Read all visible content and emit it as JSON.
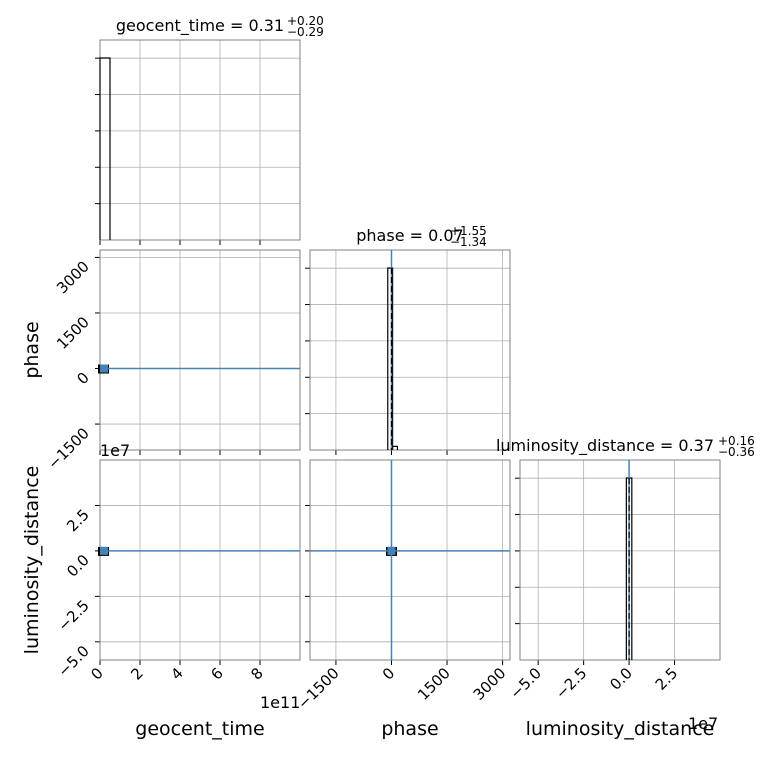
{
  "chart_data": {
    "type": "corner",
    "parameters": [
      "geocent_time",
      "phase",
      "luminosity_distance"
    ],
    "titles": [
      {
        "name": "geocent_time",
        "median": "0.31",
        "plus": "+0.20",
        "minus": "−0.29"
      },
      {
        "name": "phase",
        "median": "0.07",
        "plus": "+1.55",
        "minus": "−1.34"
      },
      {
        "name": "luminosity_distance",
        "median": "0.37",
        "plus": "+0.16",
        "minus": "−0.36"
      }
    ],
    "axis_labels": {
      "x": [
        "geocent_time",
        "phase",
        "luminosity_distance"
      ],
      "y": [
        "phase",
        "luminosity_distance"
      ]
    },
    "axes": {
      "geocent_time": {
        "range": [
          0,
          1000000000000.0
        ],
        "ticks": [
          0,
          200000000000.0,
          400000000000.0,
          600000000000.0,
          800000000000.0
        ],
        "tick_labels": [
          "0",
          "2",
          "4",
          "6",
          "8"
        ],
        "offset": "1e11"
      },
      "phase": {
        "range": [
          -2200,
          3200
        ],
        "ticks": [
          -1500,
          0,
          1500,
          3000
        ],
        "tick_labels": [
          "−1500",
          "0",
          "1500",
          "3000"
        ]
      },
      "luminosity_distance": {
        "range": [
          -60000000.0,
          50000000.0
        ],
        "ticks": [
          -50000000.0,
          -25000000.0,
          0,
          25000000.0
        ],
        "tick_labels": [
          "−5.0",
          "−2.5",
          "0.0",
          "2.5"
        ],
        "offset": "1e7"
      }
    },
    "grid": true,
    "histograms": [
      {
        "param": "geocent_time",
        "bins": [
          {
            "lo": 0,
            "hi": 50000000000.0,
            "count": 1.0
          }
        ]
      },
      {
        "param": "phase",
        "bins": [
          {
            "lo": -100,
            "hi": 30,
            "count": 1.0
          },
          {
            "lo": 30,
            "hi": 160,
            "count": 0.02
          }
        ],
        "truth": 0
      },
      {
        "param": "luminosity_distance",
        "bins": [
          {
            "lo": -1500000.0,
            "hi": 1500000.0,
            "count": 1.0
          }
        ],
        "truth": 0
      }
    ],
    "truths": {
      "geocent_time": 0.31,
      "phase": 0,
      "luminosity_distance": 0
    },
    "colors": {
      "truth": "#4682b4",
      "hist": "#000000",
      "grid": "#b0b0b0",
      "frame": "#808080",
      "density": "#000000"
    }
  }
}
